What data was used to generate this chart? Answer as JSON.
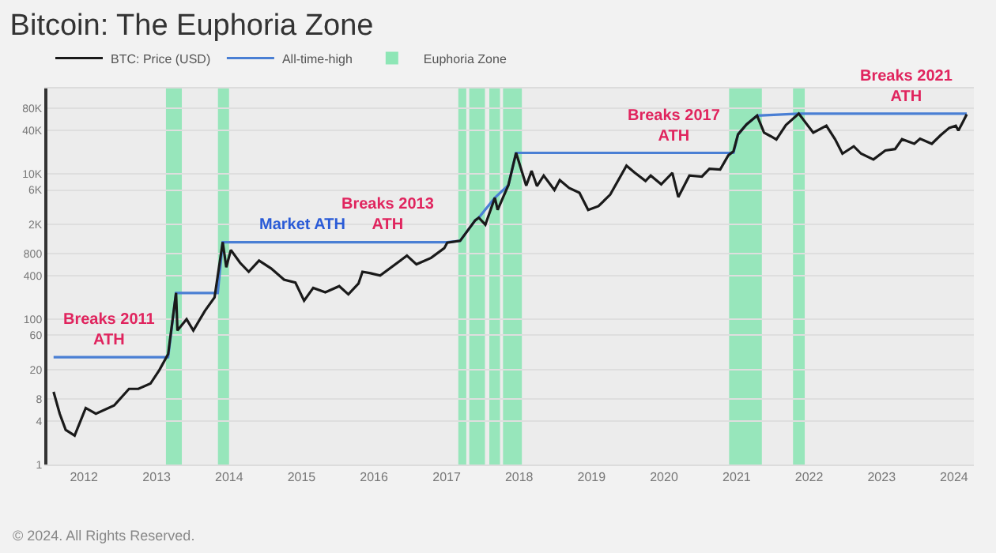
{
  "chart_data": {
    "type": "line",
    "title": "Bitcoin: The Euphoria Zone",
    "x": [
      "2011-08-01",
      "2011-09-01",
      "2011-10-01",
      "2011-11-15",
      "2011-12-15",
      "2012-01-10",
      "2012-03-01",
      "2012-06-01",
      "2012-08-15",
      "2012-10-01",
      "2012-12-01",
      "2013-01-15",
      "2013-02-28",
      "2013-04-09",
      "2013-04-16",
      "2013-06-01",
      "2013-07-05",
      "2013-09-01",
      "2013-10-20",
      "2013-11-30",
      "2013-12-18",
      "2014-01-10",
      "2014-02-25",
      "2014-04-10",
      "2014-06-01",
      "2014-08-01",
      "2014-10-05",
      "2014-12-01",
      "2015-01-14",
      "2015-03-01",
      "2015-05-01",
      "2015-07-10",
      "2015-08-25",
      "2015-10-15",
      "2015-11-04",
      "2015-12-15",
      "2016-02-01",
      "2016-06-15",
      "2016-08-02",
      "2016-10-15",
      "2016-12-20",
      "2017-01-04",
      "2017-03-10",
      "2017-05-25",
      "2017-06-12",
      "2017-07-15",
      "2017-09-01",
      "2017-09-15",
      "2017-11-08",
      "2017-12-17",
      "2018-02-06",
      "2018-03-05",
      "2018-04-01",
      "2018-05-05",
      "2018-06-28",
      "2018-07-25",
      "2018-09-10",
      "2018-11-01",
      "2018-12-15",
      "2019-02-05",
      "2019-04-05",
      "2019-06-26",
      "2019-08-05",
      "2019-09-30",
      "2019-10-26",
      "2019-12-18",
      "2020-02-12",
      "2020-03-13",
      "2020-05-08",
      "2020-07-10",
      "2020-08-17",
      "2020-10-10",
      "2020-11-20",
      "2020-12-16",
      "2021-01-08",
      "2021-02-20",
      "2021-04-14",
      "2021-05-19",
      "2021-06-22",
      "2021-07-20",
      "2021-09-06",
      "2021-11-10",
      "2022-01-22",
      "2022-03-29",
      "2022-05-12",
      "2022-06-18",
      "2022-08-14",
      "2022-09-20",
      "2022-11-21",
      "2023-01-20",
      "2023-03-10",
      "2023-04-14",
      "2023-06-15",
      "2023-07-14",
      "2023-09-11",
      "2023-10-25",
      "2023-12-08",
      "2024-01-10",
      "2024-01-23",
      "2024-02-15",
      "2024-03-05"
    ],
    "series": [
      {
        "name": "BTC: Price (USD)",
        "color": "#1a1a1a",
        "values": [
          10,
          5,
          3,
          2.5,
          4,
          6,
          5,
          6.5,
          11,
          11,
          13,
          20,
          33,
          230,
          70,
          100,
          70,
          130,
          200,
          1150,
          520,
          900,
          600,
          450,
          640,
          500,
          350,
          320,
          180,
          270,
          235,
          285,
          220,
          310,
          450,
          430,
          400,
          750,
          570,
          700,
          950,
          1130,
          1200,
          2300,
          2500,
          2000,
          4700,
          3200,
          7000,
          19500,
          6900,
          11000,
          6800,
          9500,
          6000,
          8200,
          6400,
          5500,
          3200,
          3600,
          5200,
          13000,
          10500,
          8000,
          9500,
          7200,
          10300,
          4800,
          9500,
          9200,
          11800,
          11500,
          18000,
          20500,
          35000,
          48000,
          63500,
          37000,
          33000,
          29800,
          47000,
          67500,
          37000,
          46000,
          30000,
          19000,
          24000,
          19000,
          15800,
          21000,
          22000,
          30000,
          26000,
          30500,
          26000,
          34000,
          43000,
          46000,
          39500,
          52000,
          66000
        ]
      },
      {
        "name": "All-time-high",
        "color": "#4a7fd4",
        "x": [
          "2011-08-01",
          "2013-02-28",
          "2013-04-09",
          "2013-11-05",
          "2013-11-30",
          "2017-01-04",
          "2017-03-10",
          "2017-05-25",
          "2017-06-12",
          "2017-09-01",
          "2017-11-08",
          "2017-12-17",
          "2020-12-16",
          "2021-01-08",
          "2021-02-20",
          "2021-04-14",
          "2021-11-10",
          "2024-03-05"
        ],
        "values": [
          30,
          30,
          230,
          230,
          1150,
          1150,
          1200,
          2300,
          2500,
          4700,
          7000,
          19500,
          19500,
          35000,
          48000,
          63500,
          67500,
          67500
        ]
      }
    ],
    "bands": [
      {
        "axis": "x",
        "from": "2013-02-17",
        "to": "2013-05-08",
        "label": "Euphoria Zone",
        "color": "#8ee6b6"
      },
      {
        "axis": "x",
        "from": "2013-11-06",
        "to": "2014-01-01",
        "color": "#8ee6b6"
      },
      {
        "axis": "x",
        "from": "2017-03-01",
        "to": "2017-04-10",
        "color": "#8ee6b6"
      },
      {
        "axis": "x",
        "from": "2017-04-25",
        "to": "2017-07-13",
        "color": "#8ee6b6"
      },
      {
        "axis": "x",
        "from": "2017-08-04",
        "to": "2017-09-27",
        "color": "#8ee6b6"
      },
      {
        "axis": "x",
        "from": "2017-10-12",
        "to": "2018-01-15",
        "color": "#8ee6b6"
      },
      {
        "axis": "x",
        "from": "2020-11-24",
        "to": "2021-05-08",
        "color": "#8ee6b6"
      },
      {
        "axis": "x",
        "from": "2021-10-12",
        "to": "2021-12-10",
        "color": "#8ee6b6"
      }
    ],
    "annotations": [
      {
        "text": "Breaks 2011\nATH",
        "x": "2013-02-28",
        "y": 30
      },
      {
        "text": "Market ATH",
        "x": "2015-01-01",
        "y": 1150
      },
      {
        "text": "Breaks 2013\nATH",
        "x": "2017-01-04",
        "y": 1150
      },
      {
        "text": "Breaks 2017\nATH",
        "x": "2020-12-16",
        "y": 19500
      },
      {
        "text": "Breaks 2021\nATH",
        "x": "2024-03-05",
        "y": 67500
      },
      "© 2024. All Rights Reserved."
    ],
    "log": "y",
    "xlim": [
      "2011-07-01",
      "2024-04-10"
    ],
    "xticks": [
      "2012",
      "2013",
      "2014",
      "2015",
      "2016",
      "2017",
      "2018",
      "2019",
      "2020",
      "2021",
      "2022",
      "2023",
      "2024"
    ],
    "ylim": [
      1,
      150000
    ],
    "yticks": [
      1,
      4,
      8,
      20,
      60,
      100,
      400,
      800,
      {
        "value": 2000,
        "label": "2K"
      },
      {
        "value": 6000,
        "label": "6K"
      },
      {
        "value": 10000,
        "label": "10K"
      },
      {
        "value": 40000,
        "label": "40K"
      },
      {
        "value": 80000,
        "label": "80K"
      }
    ],
    "grid": "y",
    "legend": "top left",
    "marker": "none",
    "line_style": "solid"
  }
}
